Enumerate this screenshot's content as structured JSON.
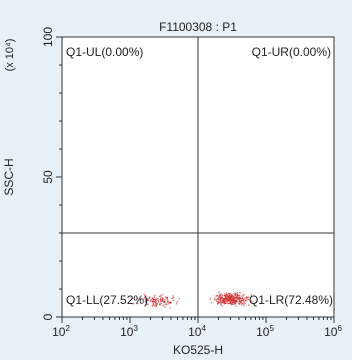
{
  "chart_data": {
    "type": "scatter",
    "title": "F1100308 : P1",
    "xlabel": "KO525-H",
    "ylabel": "SSC-H",
    "y_unit": "(x 10⁴)",
    "xscale": "log",
    "yscale": "linear",
    "xlim": [
      100,
      1000000
    ],
    "ylim": [
      0,
      100
    ],
    "x_ticks": [
      {
        "base": "10",
        "exp": "2"
      },
      {
        "base": "10",
        "exp": "3"
      },
      {
        "base": "10",
        "exp": "4"
      },
      {
        "base": "10",
        "exp": "5"
      },
      {
        "base": "10",
        "exp": "6"
      }
    ],
    "y_ticks": [
      "0",
      "50",
      "100"
    ],
    "quadrant_gate": {
      "x": 10000,
      "y": 30
    },
    "quadrants": [
      {
        "name": "Q1-UL",
        "percent": "0.00%",
        "label": "Q1-UL(0.00%)"
      },
      {
        "name": "Q1-UR",
        "percent": "0.00%",
        "label": "Q1-UR(0.00%)"
      },
      {
        "name": "Q1-LL",
        "percent": "27.52%",
        "label": "Q1-LL(27.52%)"
      },
      {
        "name": "Q1-LR",
        "percent": "72.48%",
        "label": "Q1-LR(72.48%)"
      }
    ],
    "populations": [
      {
        "quadrant": "Q1-LL",
        "x_center": 2500,
        "y_center": 6,
        "x_spread_log": 0.25,
        "y_spread": 1.8
      },
      {
        "quadrant": "Q1-LR",
        "x_center": 30000,
        "y_center": 6.5,
        "x_spread_log": 0.22,
        "y_spread": 1.8
      }
    ],
    "grid": false,
    "legend": "none",
    "point_color": "#d03030"
  }
}
